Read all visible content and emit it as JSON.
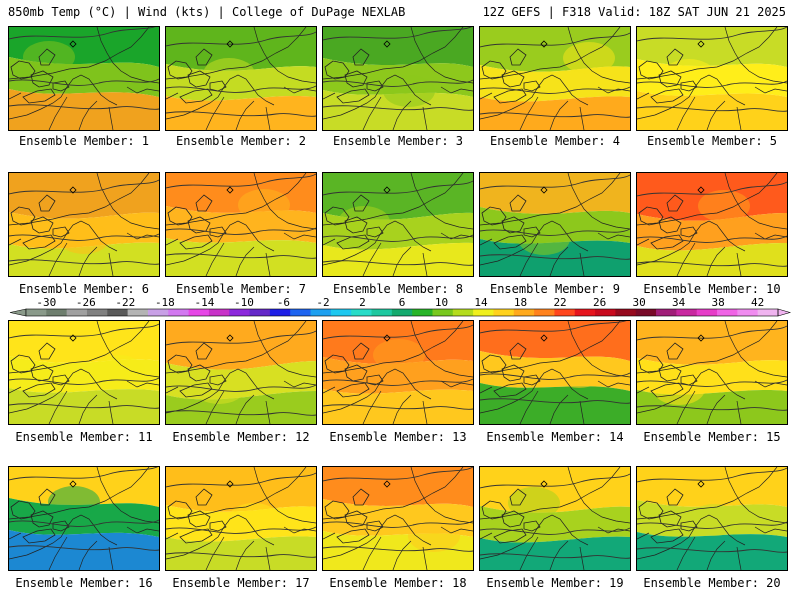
{
  "header": {
    "left": "850mb Temp (°C) | Wind (kts) | College of DuPage NEXLAB",
    "right": "12Z GEFS | F318 Valid: 18Z SAT JUN 21 2025"
  },
  "caption_prefix": "Ensemble Member:",
  "members": [
    {
      "id": "1",
      "label": "Ensemble Member: 1",
      "levels": [
        6,
        10,
        14
      ],
      "colors": [
        "#1aa52a",
        "#7fc31c",
        "#f0a21e"
      ]
    },
    {
      "id": "2",
      "label": "Ensemble Member: 2",
      "levels": [
        10,
        14,
        18
      ],
      "colors": [
        "#5fb51c",
        "#c4dc22",
        "#ffb41e"
      ]
    },
    {
      "id": "3",
      "label": "Ensemble Member: 3",
      "levels": [
        6,
        10,
        14
      ],
      "colors": [
        "#4aa822",
        "#8dc81c",
        "#c8dc26"
      ]
    },
    {
      "id": "4",
      "label": "Ensemble Member: 4",
      "levels": [
        10,
        14,
        18
      ],
      "colors": [
        "#9acc1e",
        "#f6e31a",
        "#ffaa1c"
      ]
    },
    {
      "id": "5",
      "label": "Ensemble Member: 5",
      "levels": [
        14,
        18
      ],
      "colors": [
        "#c8dc26",
        "#ffee1a",
        "#ffd21a"
      ]
    },
    {
      "id": "6",
      "label": "Ensemble Member: 6",
      "levels": [
        14,
        18,
        22
      ],
      "colors": [
        "#f0a21e",
        "#ffbe1a",
        "#d2e022"
      ]
    },
    {
      "id": "7",
      "label": "Ensemble Member: 7",
      "levels": [
        14,
        18,
        22
      ],
      "colors": [
        "#ff8c1c",
        "#ffb41e",
        "#d2e022"
      ]
    },
    {
      "id": "8",
      "label": "Ensemble Member: 8",
      "levels": [
        10,
        14
      ],
      "colors": [
        "#5ab525",
        "#a8d21e",
        "#e8e81c"
      ]
    },
    {
      "id": "9",
      "label": "Ensemble Member: 9",
      "levels": [
        6,
        10,
        14
      ],
      "colors": [
        "#f0b41e",
        "#8dc81c",
        "#0fa06e"
      ]
    },
    {
      "id": "10",
      "label": "Ensemble Member: 10",
      "levels": [
        14,
        18,
        22
      ],
      "colors": [
        "#ff5a1c",
        "#ffa01e",
        "#e0e01c"
      ]
    },
    {
      "id": "11",
      "label": "Ensemble Member: 11",
      "levels": [
        14,
        18
      ],
      "colors": [
        "#ffe41a",
        "#f6ec1a",
        "#c8dc26"
      ]
    },
    {
      "id": "12",
      "label": "Ensemble Member: 12",
      "levels": [
        10,
        14,
        18
      ],
      "colors": [
        "#ffaa1e",
        "#d8e022",
        "#9acc1e"
      ]
    },
    {
      "id": "13",
      "label": "Ensemble Member: 13",
      "levels": [
        18,
        22
      ],
      "colors": [
        "#ff7a1c",
        "#ffa01e",
        "#ffc81e"
      ]
    },
    {
      "id": "14",
      "label": "Ensemble Member: 14",
      "levels": [
        10,
        14,
        18
      ],
      "colors": [
        "#ff6e1c",
        "#ffc81e",
        "#3cad28"
      ]
    },
    {
      "id": "15",
      "label": "Ensemble Member: 15",
      "levels": [
        10,
        14,
        18
      ],
      "colors": [
        "#ffb41e",
        "#ffe01a",
        "#8dc81c"
      ]
    },
    {
      "id": "16",
      "label": "Ensemble Member: 16",
      "levels": [
        2,
        6,
        10
      ],
      "colors": [
        "#ffd21a",
        "#18a848",
        "#1c88d2"
      ]
    },
    {
      "id": "17",
      "label": "Ensemble Member: 17",
      "levels": [
        14,
        18,
        22
      ],
      "colors": [
        "#ffbe1a",
        "#ffe41a",
        "#c8dc26"
      ]
    },
    {
      "id": "18",
      "label": "Ensemble Member: 18",
      "levels": [
        14,
        18,
        22
      ],
      "colors": [
        "#ff8c1c",
        "#ffc81e",
        "#f0e81c"
      ]
    },
    {
      "id": "19",
      "label": "Ensemble Member: 19",
      "levels": [
        6,
        10,
        14
      ],
      "colors": [
        "#ffd21a",
        "#a8d21e",
        "#12a878"
      ]
    },
    {
      "id": "20",
      "label": "Ensemble Member: 20",
      "levels": [
        6,
        10,
        14
      ],
      "colors": [
        "#ffd21a",
        "#c8dc26",
        "#12a878"
      ]
    }
  ],
  "colorbar": {
    "labels": [
      "-30",
      "-26",
      "-22",
      "-18",
      "-14",
      "-10",
      "-6",
      "-2",
      "2",
      "6",
      "10",
      "14",
      "18",
      "22",
      "26",
      "30",
      "34",
      "38",
      "42"
    ],
    "colors": [
      "#8a9a8a",
      "#6e7e6e",
      "#a0a0a0",
      "#808080",
      "#5a5a5a",
      "#b4b4b4",
      "#c8a0e6",
      "#d278f0",
      "#e646e6",
      "#c832c8",
      "#8c28dc",
      "#6428c8",
      "#1e1ee6",
      "#1e64f0",
      "#1ea0f0",
      "#1ec8f0",
      "#28dcc8",
      "#1ec8a0",
      "#14aa6e",
      "#28b428",
      "#78c81e",
      "#b4dc1e",
      "#f0f01e",
      "#ffd21e",
      "#ffaa1e",
      "#ff821e",
      "#ff461e",
      "#e6141e",
      "#c80a1e",
      "#960a1e",
      "#780a28",
      "#a01e78",
      "#c828a0",
      "#e63cc8",
      "#f064e6",
      "#f08cf0",
      "#f0b4f0"
    ]
  }
}
